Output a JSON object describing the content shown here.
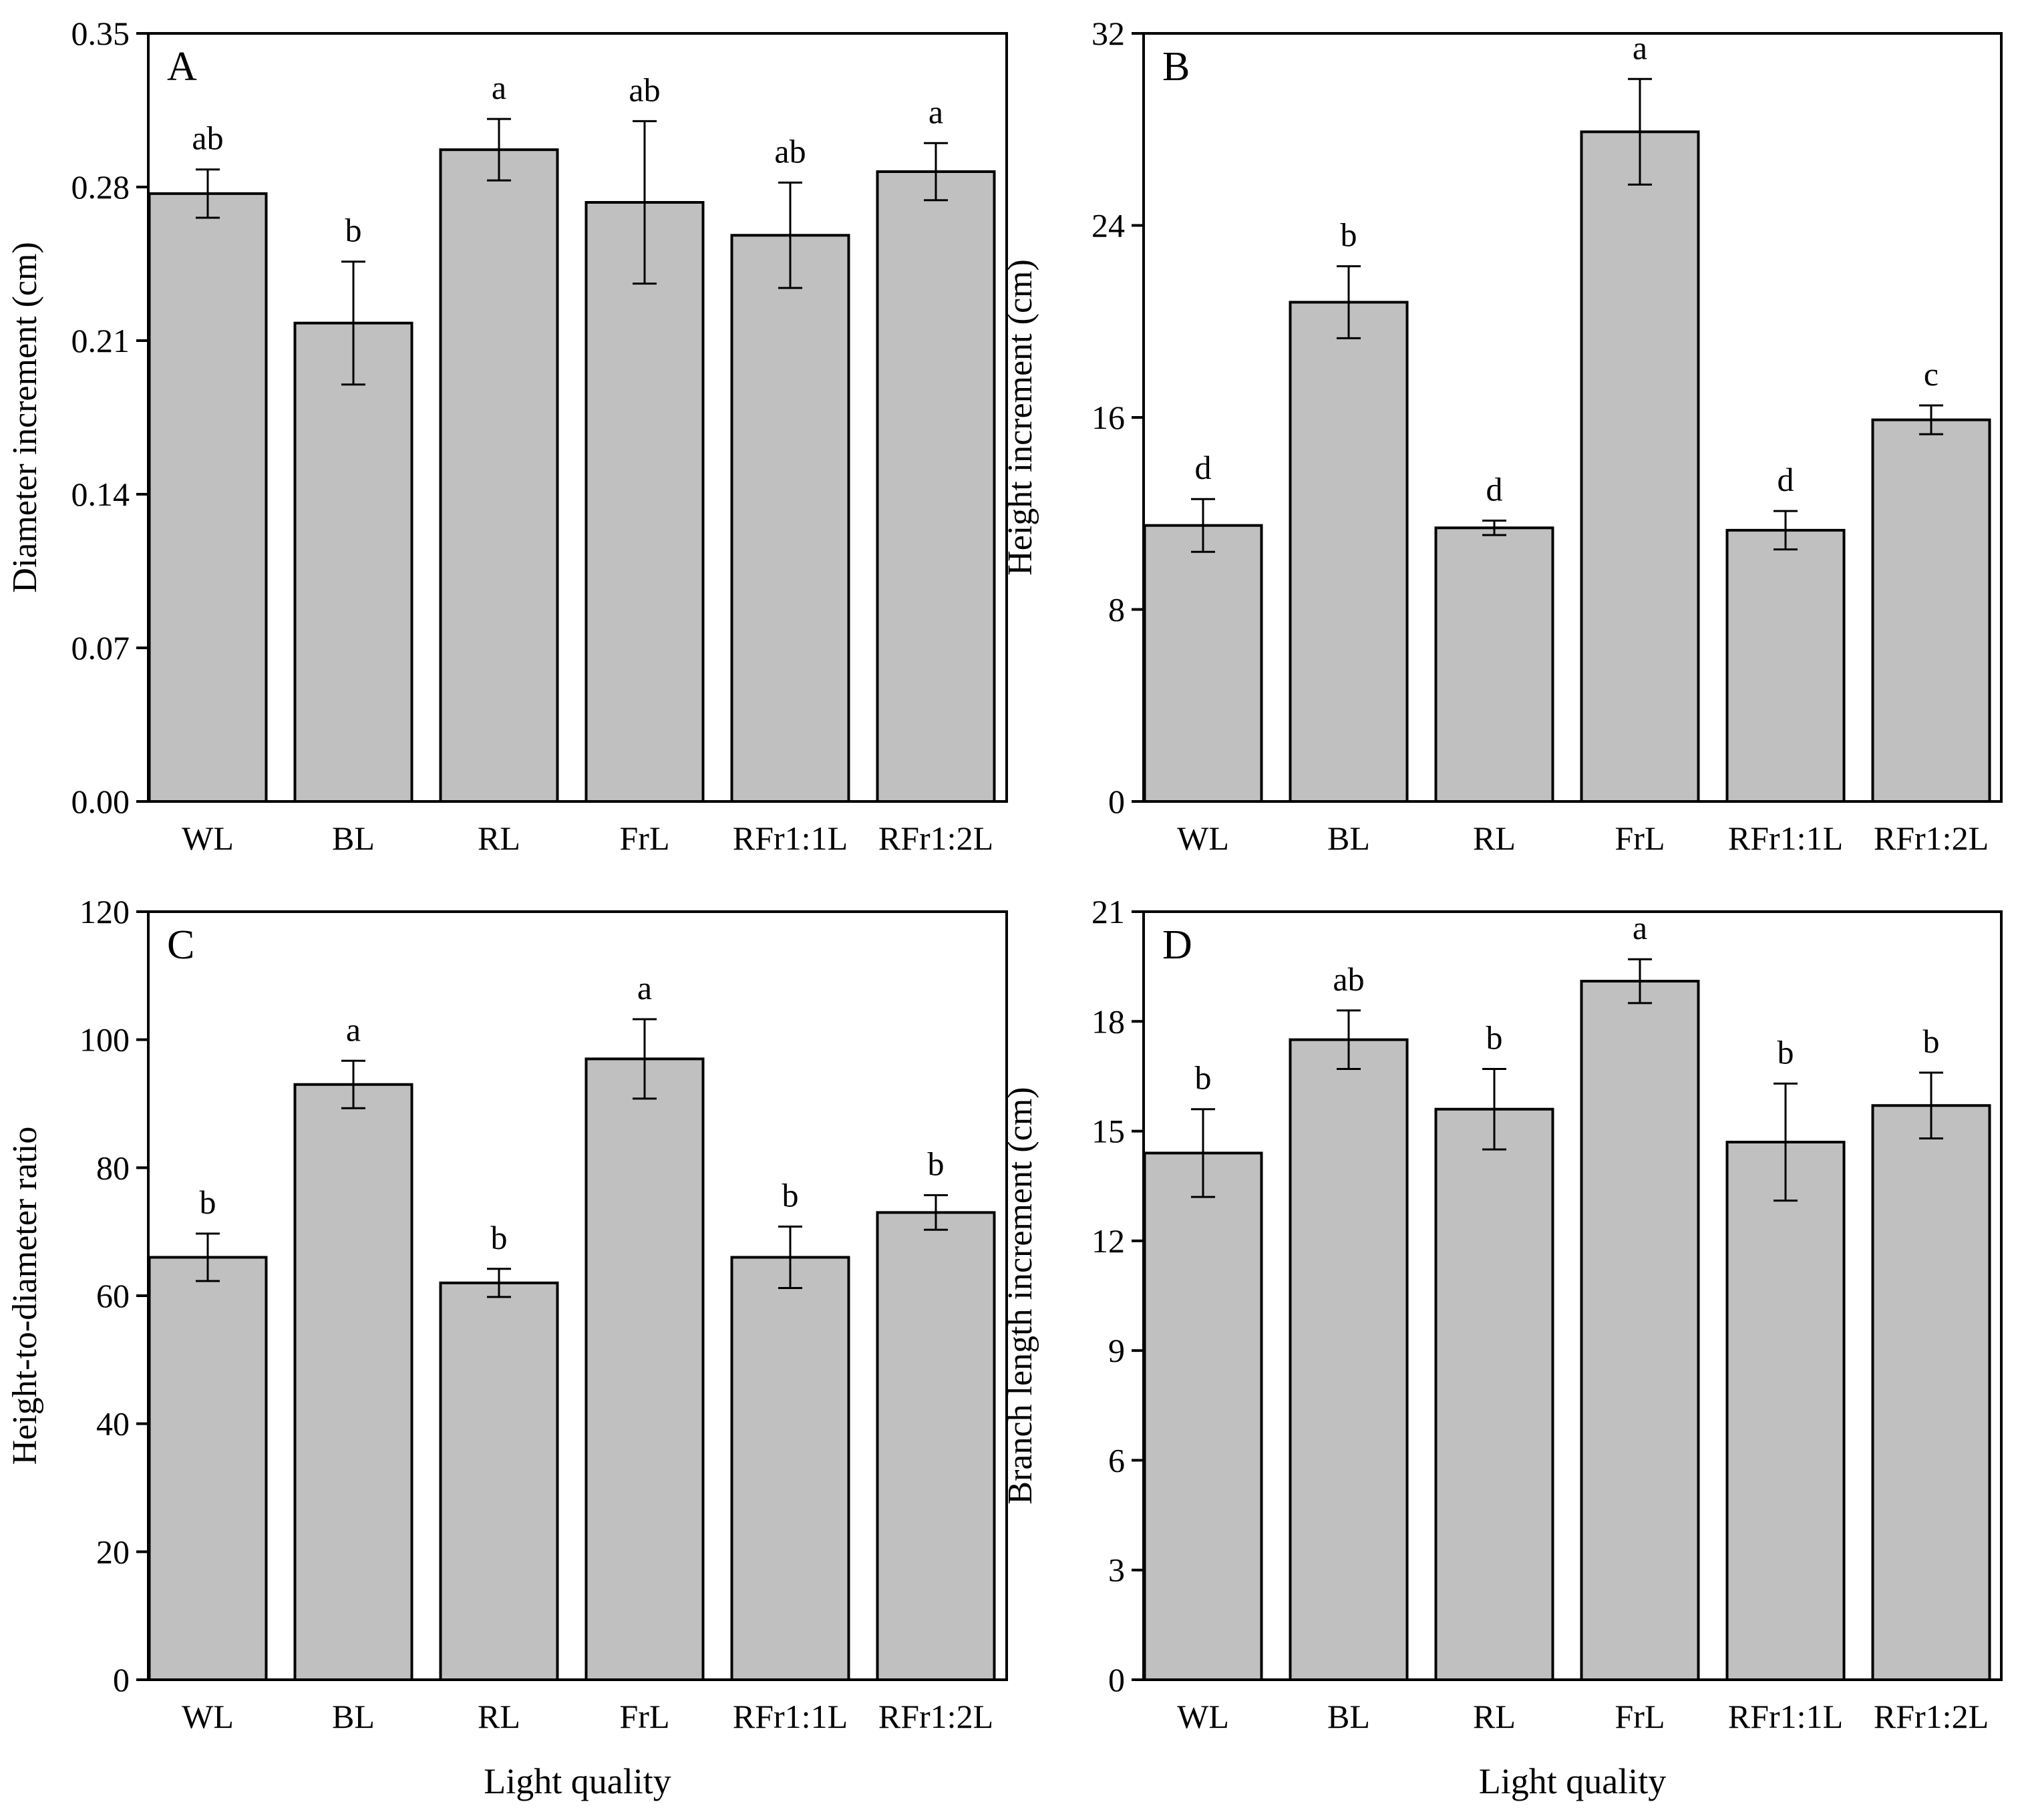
{
  "figure": {
    "bar_color": "#c0c0c0",
    "edge_color": "#000000",
    "background": "#ffffff"
  },
  "chart_data": [
    {
      "panel": "A",
      "type": "bar",
      "categories": [
        "WL",
        "BL",
        "RL",
        "FrL",
        "RFr1:1L",
        "RFr1:2L"
      ],
      "values": [
        0.277,
        0.218,
        0.297,
        0.273,
        0.258,
        0.287
      ],
      "errors": [
        0.011,
        0.028,
        0.014,
        0.037,
        0.024,
        0.013
      ],
      "letters": [
        "ab",
        "b",
        "a",
        "ab",
        "ab",
        "a"
      ],
      "ylabel": "Diameter increment (cm)",
      "xlabel": "",
      "ylim": [
        0,
        0.35
      ],
      "yticks": [
        "0.00",
        "0.07",
        "0.14",
        "0.21",
        "0.28",
        "0.35"
      ]
    },
    {
      "panel": "B",
      "type": "bar",
      "categories": [
        "WL",
        "BL",
        "RL",
        "FrL",
        "RFr1:1L",
        "RFr1:2L"
      ],
      "values": [
        11.5,
        20.8,
        11.4,
        27.9,
        11.3,
        15.9
      ],
      "errors": [
        1.1,
        1.5,
        0.3,
        2.2,
        0.8,
        0.6
      ],
      "letters": [
        "d",
        "b",
        "d",
        "a",
        "d",
        "c"
      ],
      "ylabel": "Height increment (cm)",
      "xlabel": "",
      "ylim": [
        0,
        32
      ],
      "yticks": [
        "0",
        "8",
        "16",
        "24",
        "32"
      ]
    },
    {
      "panel": "C",
      "type": "bar",
      "categories": [
        "WL",
        "BL",
        "RL",
        "FrL",
        "RFr1:1L",
        "RFr1:2L"
      ],
      "values": [
        66,
        93,
        62,
        97,
        66,
        73
      ],
      "errors": [
        3.7,
        3.7,
        2.2,
        6.2,
        4.8,
        2.7
      ],
      "letters": [
        "b",
        "a",
        "b",
        "a",
        "b",
        "b"
      ],
      "ylabel": "Height-to-diameter ratio",
      "xlabel": "Light quality",
      "ylim": [
        0,
        120
      ],
      "yticks": [
        "0",
        "20",
        "40",
        "60",
        "80",
        "100",
        "120"
      ]
    },
    {
      "panel": "D",
      "type": "bar",
      "categories": [
        "WL",
        "BL",
        "RL",
        "FrL",
        "RFr1:1L",
        "RFr1:2L"
      ],
      "values": [
        14.4,
        17.5,
        15.6,
        19.1,
        14.7,
        15.7
      ],
      "errors": [
        1.2,
        0.8,
        1.1,
        0.6,
        1.6,
        0.9
      ],
      "letters": [
        "b",
        "ab",
        "b",
        "a",
        "b",
        "b"
      ],
      "ylabel": "Branch length increment (cm)",
      "xlabel": "Light quality",
      "ylim": [
        0,
        21
      ],
      "yticks": [
        "0",
        "3",
        "6",
        "9",
        "12",
        "15",
        "18",
        "21"
      ]
    }
  ]
}
